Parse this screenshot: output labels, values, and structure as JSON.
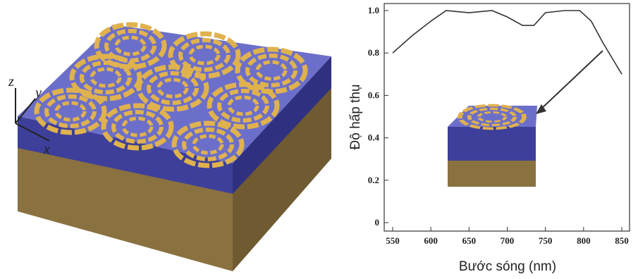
{
  "illustration": {
    "axis_labels": [
      "z",
      "y",
      "x"
    ]
  },
  "chart_data": {
    "type": "line",
    "xlabel": "Bước sóng (nm)",
    "ylabel": "Độ hấp thụ",
    "x": [
      550,
      575,
      600,
      620,
      650,
      680,
      700,
      720,
      735,
      750,
      775,
      795,
      810,
      825,
      840,
      850
    ],
    "series": [
      {
        "color": "#333333",
        "values": [
          0.8,
          0.88,
          0.95,
          1.0,
          0.99,
          1.0,
          0.97,
          0.93,
          0.93,
          0.99,
          1.0,
          1.0,
          0.95,
          0.85,
          0.76,
          0.7
        ]
      }
    ],
    "xlim": [
      550,
      850
    ],
    "xticks": [
      550,
      600,
      650,
      700,
      750,
      800,
      850
    ],
    "ylim": [
      0,
      1
    ],
    "yticks": [
      0,
      0.2,
      0.4,
      0.6,
      0.8,
      {
        "value": 1,
        "label": "1.0"
      }
    ]
  }
}
